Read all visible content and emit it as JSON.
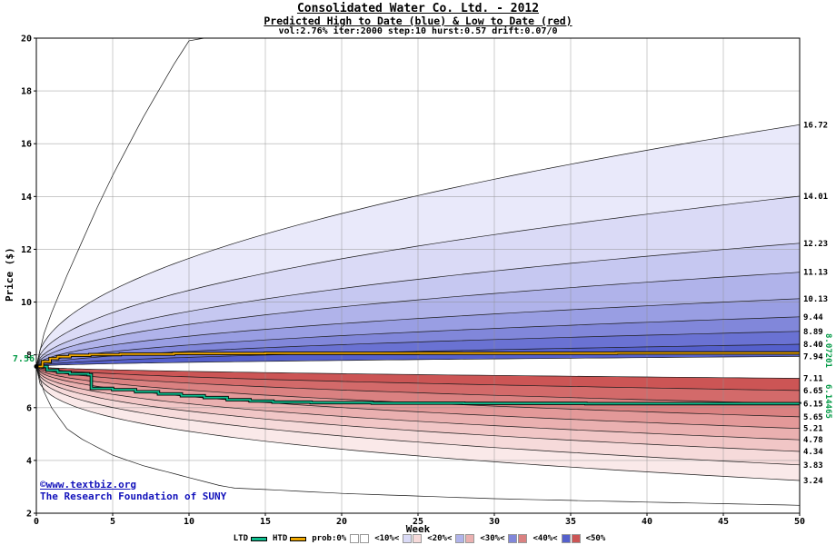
{
  "watermark": {
    "line1": "©www.textbiz.org",
    "line2": "The Research Foundation of SUNY",
    "color": "#1212bb"
  },
  "legend": {
    "items": [
      {
        "label": "LTD",
        "swatch": "line",
        "color": "#0fbf8f"
      },
      {
        "label": "HTD",
        "swatch": "line",
        "color": "#f0a800"
      },
      {
        "label": "prob:0%",
        "swatch": "pair",
        "colors": [
          "#ffffff",
          "#ffffff"
        ]
      },
      {
        "label": "<10%<",
        "swatch": "pair",
        "colors": [
          "#dadaf6",
          "#f6dada"
        ]
      },
      {
        "label": "<20%<",
        "swatch": "pair",
        "colors": [
          "#b0b3ea",
          "#eab0b0"
        ]
      },
      {
        "label": "<30%<",
        "swatch": "pair",
        "colors": [
          "#8187da",
          "#da8181"
        ]
      },
      {
        "label": "<40%<",
        "swatch": "pair",
        "colors": [
          "#5560cc",
          "#cc5555"
        ]
      },
      {
        "label": "<50%",
        "swatch": "none"
      }
    ]
  },
  "chart_data": {
    "type": "area",
    "chart_kind": "monte-carlo-probability-fan",
    "title": "Consolidated Water Co. Ltd. - 2012",
    "subtitle": "Predicted High to Date (blue) &  Low to Date (red)",
    "params": "vol:2.76% iter:2000 step:10 hurst:0.57 drift:0.07/0",
    "xlabel": "Week",
    "ylabel": "Price ($)",
    "xlim": [
      0,
      50
    ],
    "ylim": [
      2,
      20
    ],
    "x_ticks": [
      0,
      5,
      10,
      15,
      20,
      25,
      30,
      35,
      40,
      45,
      50
    ],
    "y_ticks": [
      2,
      4,
      6,
      8,
      10,
      12,
      14,
      16,
      18,
      20
    ],
    "start": 7.56,
    "start_label": "7.56",
    "high_boundaries": [
      {
        "pts": [
          [
            0,
            7.56
          ],
          [
            0.5,
            8.8
          ],
          [
            1,
            9.6
          ],
          [
            2,
            11.0
          ],
          [
            3,
            12.3
          ],
          [
            4,
            13.6
          ],
          [
            5,
            14.8
          ],
          [
            6,
            15.9
          ],
          [
            7,
            17.0
          ],
          [
            8,
            18.0
          ],
          [
            9,
            19.0
          ],
          [
            10,
            19.9
          ],
          [
            11,
            20.6
          ],
          [
            12,
            21.2
          ]
        ],
        "label": ""
      },
      {
        "end": 16.72,
        "exp": 0.5,
        "label": "16.72"
      },
      {
        "end": 14.01,
        "exp": 0.5,
        "label": "14.01"
      },
      {
        "end": 12.23,
        "exp": 0.5,
        "label": "12.23"
      },
      {
        "end": 11.13,
        "exp": 0.5,
        "label": "11.13"
      },
      {
        "end": 10.13,
        "exp": 0.5,
        "label": "10.13"
      },
      {
        "end": 9.44,
        "exp": 0.52,
        "label": "9.44"
      },
      {
        "end": 8.89,
        "exp": 0.52,
        "label": "8.89"
      },
      {
        "end": 8.4,
        "exp": 0.55,
        "label": "8.40"
      },
      {
        "end": 7.94,
        "exp": 0.55,
        "label": "7.94"
      }
    ],
    "low_boundaries": [
      {
        "pts": [
          [
            0,
            7.56
          ],
          [
            0.5,
            6.6
          ],
          [
            1,
            6.0
          ],
          [
            2,
            5.2
          ],
          [
            3,
            4.8
          ],
          [
            5,
            4.2
          ],
          [
            7,
            3.8
          ],
          [
            10,
            3.35
          ],
          [
            12,
            3.05
          ],
          [
            13,
            2.95
          ],
          [
            15,
            2.9
          ],
          [
            20,
            2.75
          ],
          [
            30,
            2.55
          ],
          [
            40,
            2.42
          ],
          [
            50,
            2.3
          ]
        ],
        "label": ""
      },
      {
        "end": 3.24,
        "exp": 0.35,
        "label": "3.24"
      },
      {
        "end": 3.83,
        "exp": 0.38,
        "label": "3.83"
      },
      {
        "end": 4.34,
        "exp": 0.4,
        "label": "4.34"
      },
      {
        "end": 4.78,
        "exp": 0.42,
        "label": "4.78"
      },
      {
        "end": 5.21,
        "exp": 0.45,
        "label": "5.21"
      },
      {
        "end": 5.65,
        "exp": 0.47,
        "label": "5.65"
      },
      {
        "end": 6.15,
        "exp": 0.5,
        "label": "6.15"
      },
      {
        "end": 6.65,
        "exp": 0.52,
        "label": "6.65"
      },
      {
        "end": 7.11,
        "exp": 0.55,
        "label": "7.11"
      }
    ],
    "band_colors_high": [
      "#ffffff",
      "#e9e9fa",
      "#dadaf6",
      "#c6c8f1",
      "#b0b3ea",
      "#999ee3",
      "#8187da",
      "#6a72d3",
      "#5560cc"
    ],
    "band_colors_low": [
      "#ffffff",
      "#fae9e9",
      "#f6dada",
      "#f1c6c6",
      "#eab0b0",
      "#e39999",
      "#da8181",
      "#d36a6a",
      "#cc5555"
    ],
    "htd": {
      "label": "HTD",
      "color": "#f0a800",
      "end_label": "8.07201",
      "points": [
        [
          0,
          7.56
        ],
        [
          0.4,
          7.74
        ],
        [
          0.9,
          7.86
        ],
        [
          1.4,
          7.93
        ],
        [
          2.2,
          7.98
        ],
        [
          3.5,
          8.01
        ],
        [
          5.5,
          8.03
        ],
        [
          9,
          8.05
        ],
        [
          15,
          8.06
        ],
        [
          25,
          8.065
        ],
        [
          38,
          8.07
        ],
        [
          50,
          8.072
        ]
      ]
    },
    "ltd": {
      "label": "LTD",
      "color": "#0fbf8f",
      "end_label": "6.14465",
      "points": [
        [
          0,
          7.56
        ],
        [
          0.7,
          7.42
        ],
        [
          1.4,
          7.34
        ],
        [
          2.2,
          7.28
        ],
        [
          3.4,
          7.25
        ],
        [
          3.6,
          6.73
        ],
        [
          5,
          6.68
        ],
        [
          6.5,
          6.6
        ],
        [
          8,
          6.52
        ],
        [
          9.5,
          6.45
        ],
        [
          11,
          6.38
        ],
        [
          12.5,
          6.3
        ],
        [
          14,
          6.25
        ],
        [
          15.5,
          6.21
        ],
        [
          18,
          6.19
        ],
        [
          22,
          6.17
        ],
        [
          28,
          6.16
        ],
        [
          36,
          6.15
        ],
        [
          50,
          6.144
        ]
      ]
    },
    "grid": true
  }
}
